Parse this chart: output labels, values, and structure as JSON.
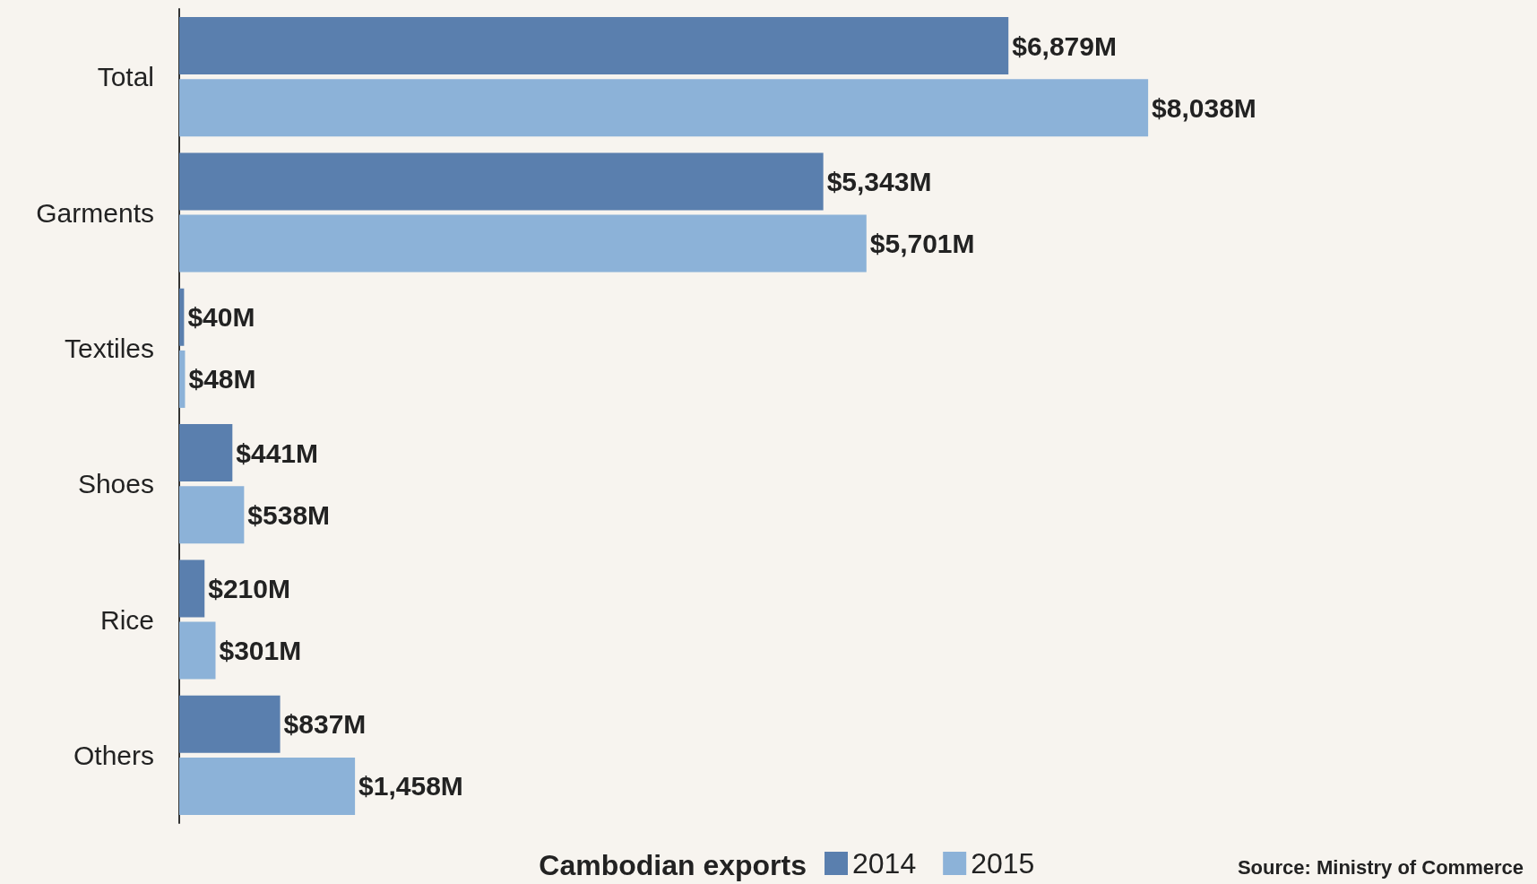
{
  "chart_data": {
    "type": "bar",
    "orientation": "horizontal",
    "categories": [
      "Total",
      "Garments",
      "Textiles",
      "Shoes",
      "Rice",
      "Others"
    ],
    "series": [
      {
        "name": "2014",
        "color": "#5a7fae",
        "values": [
          6879,
          5343,
          40,
          441,
          210,
          837
        ],
        "value_labels": [
          "$6,879M",
          "$5,343M",
          "$40M",
          "$441M",
          "$210M",
          "$837M"
        ]
      },
      {
        "name": "2015",
        "color": "#8cb2d8",
        "values": [
          8038,
          5701,
          48,
          538,
          301,
          1458
        ],
        "value_labels": [
          "$8,038M",
          "$5,701M",
          "$48M",
          "$538M",
          "$301M",
          "$1,458M"
        ]
      }
    ],
    "legend_title": "Cambodian exports",
    "legend": "bottom",
    "annotations": [
      "Source: Ministry of Commerce"
    ]
  }
}
